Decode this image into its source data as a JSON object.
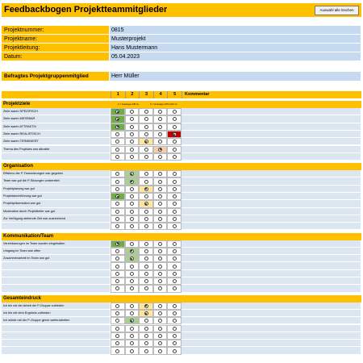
{
  "header": {
    "title": "Feedbackbogen Projektteammitglieder",
    "button": "Auswahl alle löschen"
  },
  "info": [
    {
      "label": "Projektnummer:",
      "value": "0815"
    },
    {
      "label": "Projektname:",
      "value": "Musterprojekt"
    },
    {
      "label": "Projektleitung:",
      "value": "Hans Mustermann"
    },
    {
      "label": "Datum:",
      "value": "05.04.2023"
    }
  ],
  "member": {
    "label": "Befragtes Projektgruppenmitglied",
    "value": "Herr Müller"
  },
  "columns": {
    "ratings": [
      "1",
      "2",
      "3",
      "4",
      "5"
    ],
    "comment": "Kommentar"
  },
  "scale": {
    "best": "1 = Aussage trifft zu",
    "worst": "5 = Aussage trifft nicht zu"
  },
  "sections": [
    {
      "title": "Projektziele",
      "items": [
        {
          "label": "Ziele waren SPEZIFISCH",
          "rating": 1
        },
        {
          "label": "Ziele waren MESSBAR",
          "rating": 1
        },
        {
          "label": "Ziele waren ATTRAKTIV",
          "rating": 1
        },
        {
          "label": "Ziele waren REALISTISCH",
          "rating": 5
        },
        {
          "label": "Ziele waren TERMINIERT",
          "rating": 3
        },
        {
          "label": "Thema des Projektes war attraktiv",
          "rating": 4
        },
        {
          "label": null,
          "rating": null
        }
      ]
    },
    {
      "title": "Organisation",
      "items": [
        {
          "label": "Effizienz der P-Teamsitzungen war gegeben",
          "rating": 2
        },
        {
          "label": "Team war gut die P-Sitzungen vorbereitet",
          "rating": 2
        },
        {
          "label": "Projektplanung war gut",
          "rating": 3
        },
        {
          "label": "Projektdurchführung war gut",
          "rating": 1
        },
        {
          "label": "Projektpräsentation war gut",
          "rating": 3
        },
        {
          "label": "Moderation durch Projektleiter war gut",
          "rating": null
        },
        {
          "label": "Zur Verfügung stehende Zeit war ausreichend",
          "rating": null
        },
        {
          "label": null,
          "rating": null
        }
      ]
    },
    {
      "title": "Kommunikation/Team",
      "items": [
        {
          "label": "Vereinbarungen im Team wurden eingehalten",
          "rating": 1
        },
        {
          "label": "Umgang im Team war offen",
          "rating": 2
        },
        {
          "label": "Zusammenarbeit im Team war gut",
          "rating": 2
        },
        {
          "label": null,
          "rating": null
        },
        {
          "label": null,
          "rating": null
        },
        {
          "label": null,
          "rating": null
        },
        {
          "label": null,
          "rating": null
        }
      ]
    },
    {
      "title": "Gesamteindruck",
      "items": [
        {
          "label": "Ich bin mit der Arbeit der P-Gruppe zufrieden",
          "rating": 3
        },
        {
          "label": "Ich bin mit dem Ergebnis zufrieden",
          "rating": 3
        },
        {
          "label": "Ich würde mit der P-Gruppe gerne weiterarbeiten",
          "rating": 2
        },
        {
          "label": null,
          "rating": null
        },
        {
          "label": null,
          "rating": null
        },
        {
          "label": null,
          "rating": null
        },
        {
          "label": null,
          "rating": null
        }
      ]
    }
  ]
}
